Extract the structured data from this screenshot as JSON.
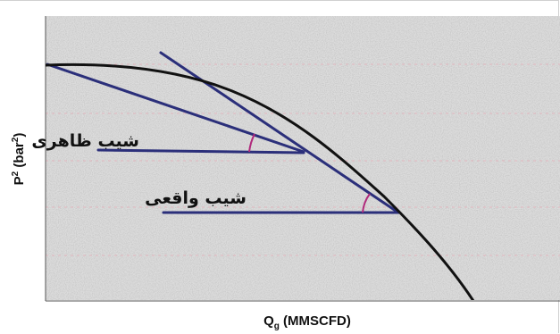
{
  "figure": {
    "y_axis": {
      "base": "P",
      "exp": "2",
      "paren_open": " (bar",
      "paren_exp": "2",
      "paren_close": ")"
    },
    "x_axis": {
      "base": "Q",
      "sub": "g",
      "rest": " (MMSCFD)"
    }
  },
  "labels": {
    "apparent_slope": "شیب ظاهری",
    "actual_slope": "شیب واقعی"
  },
  "colors": {
    "curve": "#111111",
    "lines": "#2b2f7a",
    "angle_arcs": "#b02a7c",
    "gridlines": "#e2b6be",
    "plot_border": "#666666",
    "plot_fill": "#d9d9d9"
  }
}
